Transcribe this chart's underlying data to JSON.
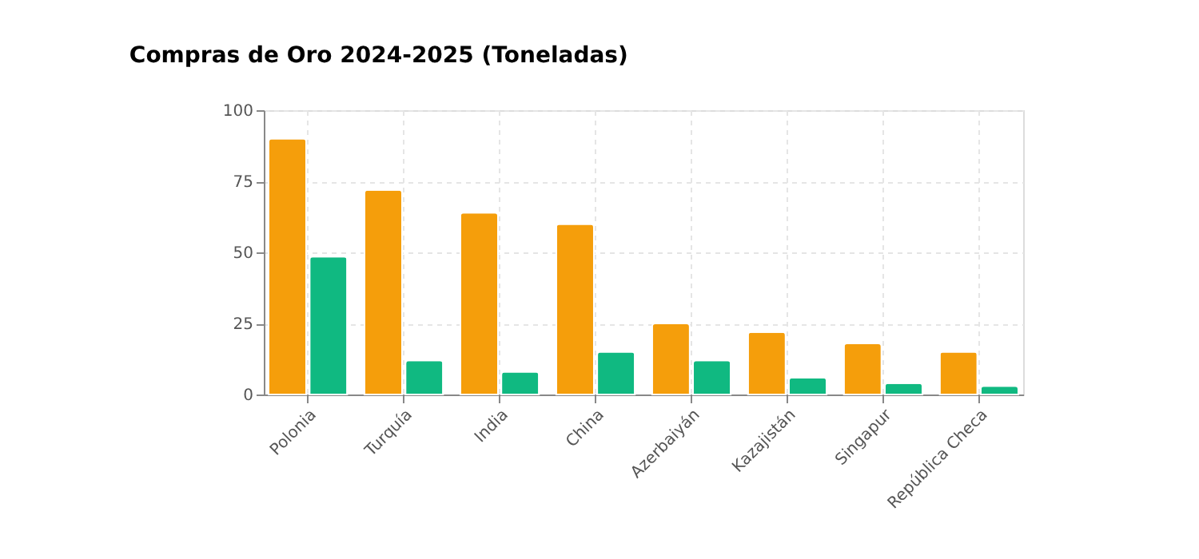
{
  "chart_data": {
    "type": "bar",
    "title": "Compras de Oro 2024-2025 (Toneladas)",
    "categories": [
      "Polonia",
      "Turquía",
      "India",
      "China",
      "Azerbaiyán",
      "Kazajistán",
      "Singapur",
      "República Checa"
    ],
    "series": [
      {
        "color": "#f59e0b",
        "values": [
          90,
          72,
          64,
          60,
          25,
          22,
          18,
          15
        ]
      },
      {
        "color": "#10b981",
        "values": [
          48.5,
          12,
          8,
          15,
          12,
          6,
          4,
          3
        ]
      }
    ],
    "ylim": [
      0,
      100
    ],
    "yticks": [
      0,
      25,
      50,
      75,
      100
    ],
    "grid": true,
    "legend": false
  }
}
